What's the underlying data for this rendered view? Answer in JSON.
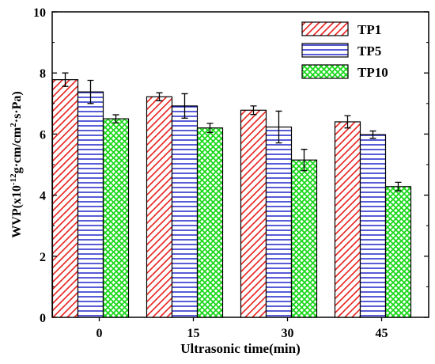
{
  "chart_data": {
    "type": "bar",
    "xlabel": "Ultrasonic time(min)",
    "ylabel": {
      "pre": "WVP(x10",
      "exp1": "-12",
      "mid": "g·cm/cm",
      "exp2": "2",
      "post": "·s·Pa)"
    },
    "categories": [
      "0",
      "15",
      "30",
      "45"
    ],
    "ylim": [
      0,
      10
    ],
    "yticks": [
      "0",
      "2",
      "4",
      "6",
      "8",
      "10"
    ],
    "grid": false,
    "legend_position": "top-right",
    "series": [
      {
        "name": "TP1",
        "values": [
          7.78,
          7.22,
          6.78,
          6.4
        ],
        "errors": [
          0.22,
          0.13,
          0.14,
          0.2
        ],
        "color": "#e8201c",
        "pattern": "diagonal"
      },
      {
        "name": "TP5",
        "values": [
          7.38,
          6.92,
          6.23,
          5.98
        ],
        "errors": [
          0.38,
          0.4,
          0.52,
          0.12
        ],
        "color": "#2026c8",
        "pattern": "horizontal"
      },
      {
        "name": "TP10",
        "values": [
          6.5,
          6.2,
          5.15,
          4.28
        ],
        "errors": [
          0.13,
          0.15,
          0.35,
          0.14
        ],
        "color": "#18d818",
        "pattern": "crosshatch"
      }
    ]
  }
}
